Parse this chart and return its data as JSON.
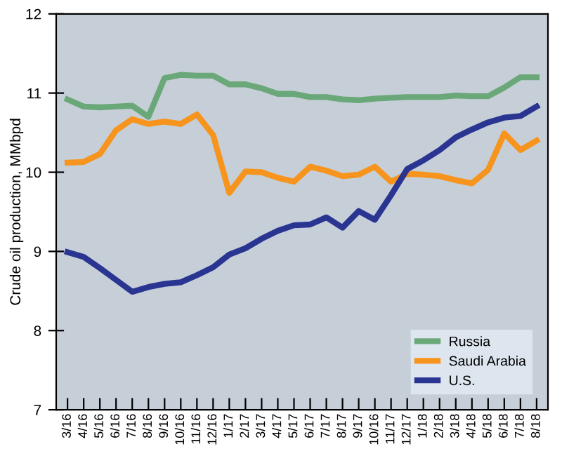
{
  "chart_data": {
    "type": "line",
    "ylabel": "Crude oil production, MMbpd",
    "categories": [
      "3/16",
      "4/16",
      "5/16",
      "6/16",
      "7/16",
      "8/16",
      "9/16",
      "10/16",
      "11/16",
      "12/16",
      "1/17",
      "2/17",
      "3/17",
      "4/17",
      "5/17",
      "6/17",
      "7/17",
      "8/17",
      "9/17",
      "10/16",
      "11/17",
      "12/17",
      "1/18",
      "2/18",
      "3/18",
      "4/18",
      "5/18",
      "6/18",
      "7/18",
      "8/18"
    ],
    "series": [
      {
        "name": "Russia",
        "color": "#6aa879",
        "values": [
          10.92,
          10.83,
          10.82,
          10.83,
          10.84,
          10.7,
          11.19,
          11.23,
          11.22,
          11.22,
          11.11,
          11.11,
          11.06,
          10.99,
          10.99,
          10.95,
          10.95,
          10.92,
          10.91,
          10.93,
          10.94,
          10.95,
          10.95,
          10.95,
          10.97,
          10.96,
          10.96,
          11.07,
          11.2,
          11.2
        ]
      },
      {
        "name": "Saudi Arabia",
        "color": "#f7941d",
        "values": [
          10.12,
          10.13,
          10.23,
          10.53,
          10.67,
          10.61,
          10.64,
          10.61,
          10.73,
          10.47,
          9.74,
          10.01,
          10.0,
          9.93,
          9.88,
          10.07,
          10.02,
          9.95,
          9.97,
          10.07,
          9.88,
          9.98,
          9.97,
          9.95,
          9.9,
          9.86,
          10.03,
          10.49,
          10.28,
          10.4
        ]
      },
      {
        "name": "U.S.",
        "color": "#2a3592",
        "values": [
          8.99,
          8.93,
          8.79,
          8.64,
          8.49,
          8.55,
          8.59,
          8.61,
          8.7,
          8.8,
          8.96,
          9.04,
          9.16,
          9.26,
          9.33,
          9.34,
          9.43,
          9.3,
          9.51,
          9.4,
          9.71,
          10.04,
          10.15,
          10.28,
          10.44,
          10.54,
          10.63,
          10.69,
          10.71,
          10.83
        ]
      }
    ],
    "ylim": [
      7,
      12
    ],
    "yticks": [
      7,
      8,
      9,
      10,
      11,
      12
    ],
    "legend": "bottom right",
    "grid": false,
    "line_style": "solid",
    "marker": "none"
  }
}
